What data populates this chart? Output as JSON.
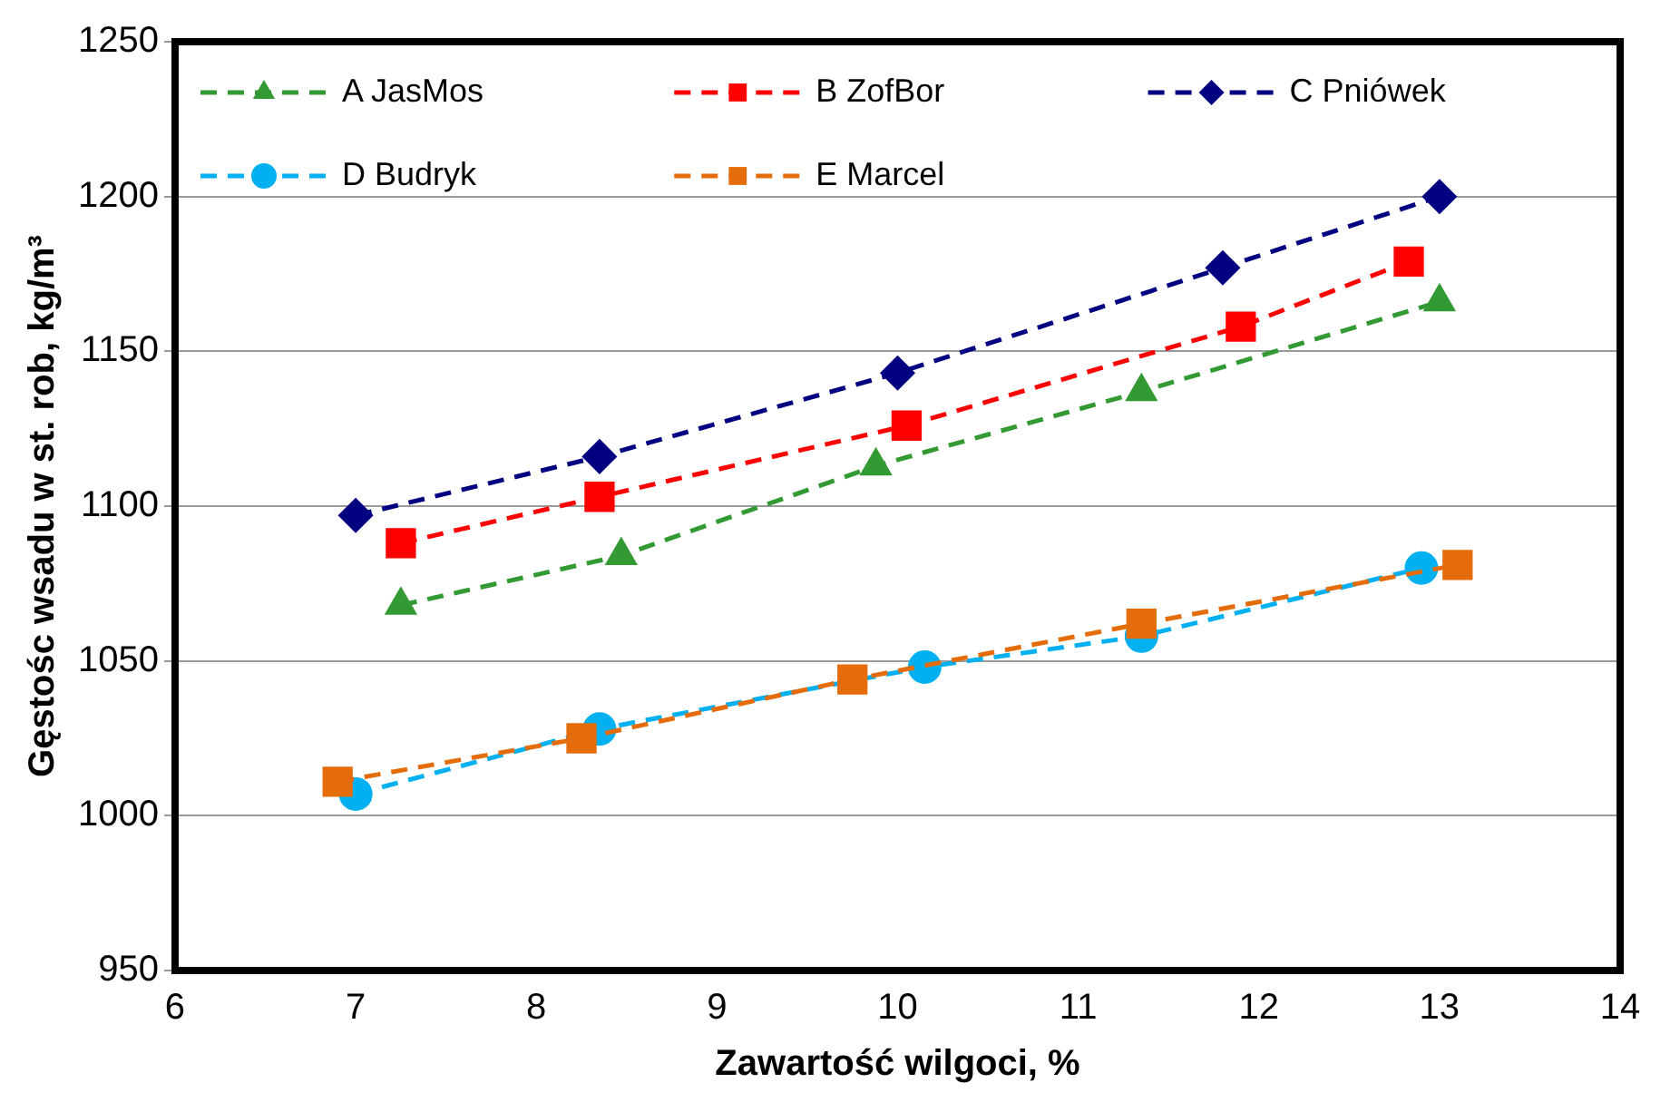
{
  "chart_data": {
    "type": "line",
    "xlabel": "Zawartość wilgoci, %",
    "ylabel": "Gęstośc wsadu w st. rob, kg/m³",
    "xlim": [
      6,
      14
    ],
    "xticks": [
      6,
      7,
      8,
      9,
      10,
      11,
      12,
      13,
      14
    ],
    "ylim": [
      950,
      1250
    ],
    "yticks": [
      950,
      1000,
      1050,
      1100,
      1150,
      1200,
      1250
    ],
    "grid": "y",
    "legend": "top",
    "line_style": "dashed",
    "series": [
      {
        "name": "A JasMos",
        "color": "#339933",
        "marker": "triangle",
        "x": [
          7.25,
          8.47,
          9.88,
          11.35,
          13.0
        ],
        "values": [
          1068,
          1084,
          1113,
          1137,
          1166
        ]
      },
      {
        "name": "B ZofBor",
        "color": "#ff0000",
        "marker": "square",
        "x": [
          7.25,
          8.35,
          10.05,
          11.9,
          12.83
        ],
        "values": [
          1088,
          1103,
          1126,
          1158,
          1179
        ]
      },
      {
        "name": "C Pniówek",
        "color": "#000080",
        "marker": "diamond",
        "x": [
          7.0,
          8.35,
          10.0,
          11.8,
          13.0
        ],
        "values": [
          1097,
          1116,
          1143,
          1177,
          1200
        ]
      },
      {
        "name": "D Budryk",
        "color": "#00b0f0",
        "marker": "circle",
        "x": [
          7.0,
          8.35,
          10.15,
          11.35,
          12.9
        ],
        "values": [
          1007,
          1028,
          1048,
          1058,
          1080
        ]
      },
      {
        "name": "E Marcel",
        "color": "#e46c0a",
        "marker": "square",
        "x": [
          6.9,
          8.25,
          9.75,
          11.35,
          13.1
        ],
        "values": [
          1011,
          1025,
          1044,
          1062,
          1081
        ]
      }
    ]
  }
}
